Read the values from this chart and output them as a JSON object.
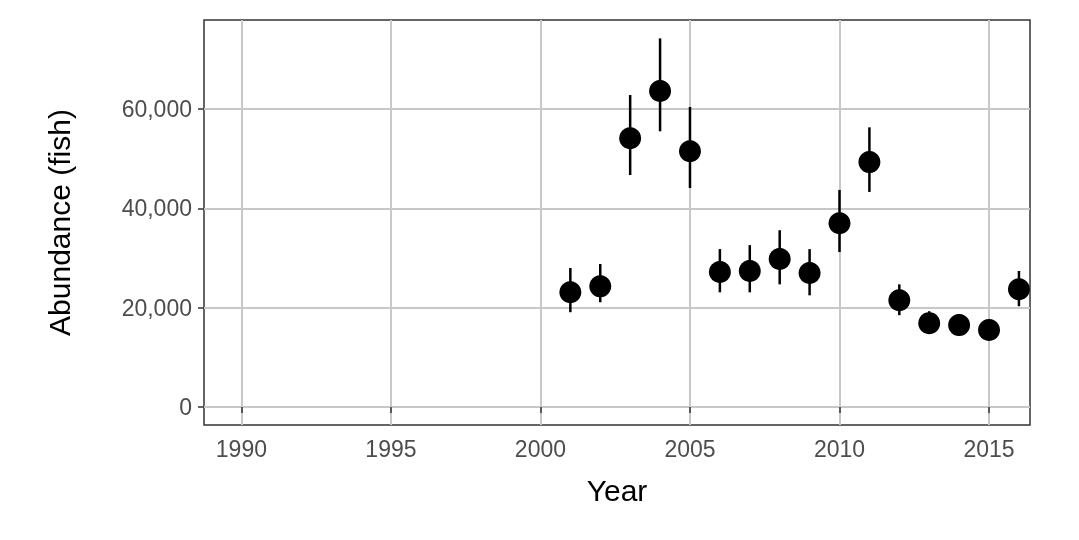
{
  "chart_data": {
    "type": "scatter",
    "xlabel": "Year",
    "ylabel": "Abundance (fish)",
    "x": [
      2001,
      2002,
      2003,
      2004,
      2005,
      2006,
      2007,
      2008,
      2009,
      2010,
      2011,
      2012,
      2013,
      2014,
      2015,
      2016
    ],
    "values": [
      23100,
      24300,
      54100,
      63600,
      51500,
      27200,
      27400,
      29800,
      27000,
      37000,
      49300,
      21500,
      16900,
      16500,
      15500,
      23700
    ],
    "errors": [
      [
        19100,
        28000
      ],
      [
        21100,
        28800
      ],
      [
        46700,
        62800
      ],
      [
        55500,
        74200
      ],
      [
        44100,
        60400
      ],
      [
        23100,
        31800
      ],
      [
        23100,
        32600
      ],
      [
        24700,
        35600
      ],
      [
        22500,
        31800
      ],
      [
        31200,
        43700
      ],
      [
        43300,
        56300
      ],
      [
        18500,
        24700
      ],
      [
        15300,
        19300
      ],
      [
        14900,
        18700
      ],
      null,
      [
        20300,
        27400
      ]
    ],
    "color": "#000000",
    "marker": "circle",
    "grid": true,
    "xlim": [
      1988.75,
      2016.37
    ],
    "xticks": [
      1990,
      1995,
      2000,
      2005,
      2010,
      2015
    ],
    "ylim": [
      -3600,
      77900
    ],
    "yticks": [
      0,
      {
        "value": 20000,
        "label": "20,000"
      },
      {
        "value": 40000,
        "label": "40,000"
      },
      {
        "value": 60000,
        "label": "60,000"
      }
    ]
  }
}
